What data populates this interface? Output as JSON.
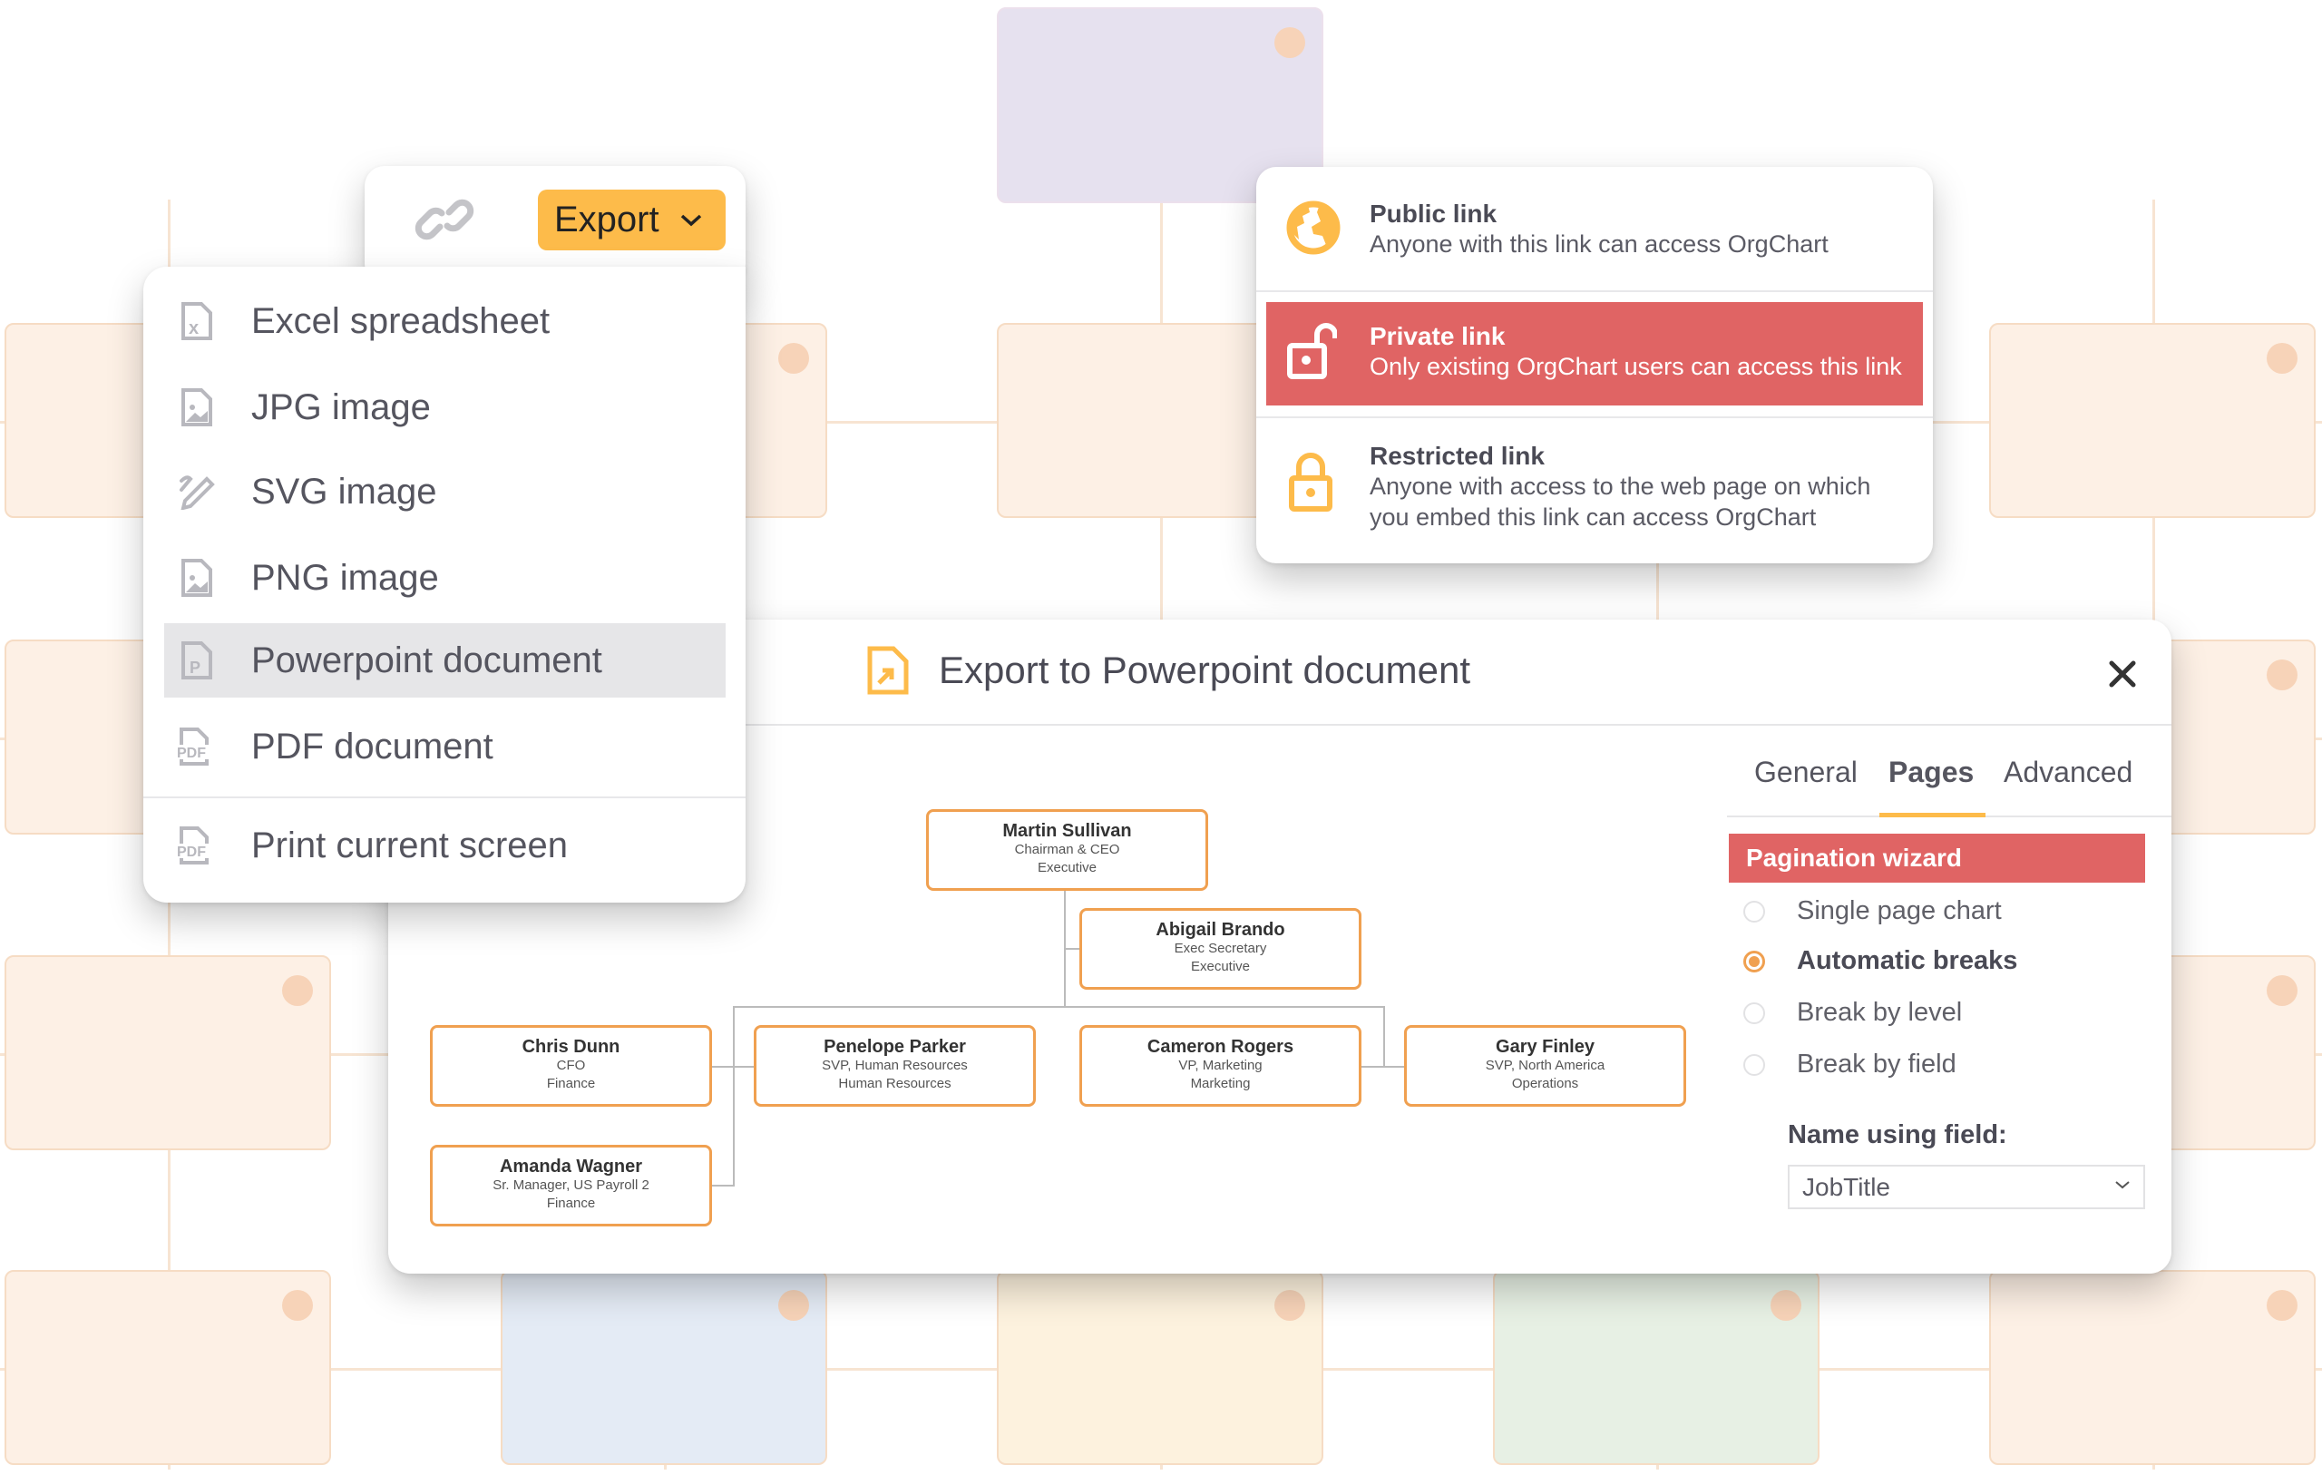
{
  "export_toolbar": {
    "export_label": "Export",
    "link_icon": "link-icon",
    "chevron_icon": "chevron-down-icon"
  },
  "export_menu": {
    "items": [
      {
        "label": "Excel spreadsheet",
        "icon": "excel-file-icon"
      },
      {
        "label": "JPG image",
        "icon": "image-file-icon"
      },
      {
        "label": "SVG image",
        "icon": "svg-pen-icon"
      },
      {
        "label": "PNG image",
        "icon": "image-file-icon"
      },
      {
        "label": "Powerpoint document",
        "icon": "powerpoint-file-icon",
        "selected": true
      },
      {
        "label": "PDF document",
        "icon": "pdf-file-icon"
      },
      {
        "label": "Print current screen",
        "icon": "pdf-file-icon"
      }
    ]
  },
  "link_options": [
    {
      "title": "Public link",
      "desc": "Anyone with this link can access OrgChart",
      "icon": "globe-icon"
    },
    {
      "title": "Private link",
      "desc": "Only existing OrgChart users can access this link",
      "icon": "unlock-icon",
      "selected": true
    },
    {
      "title": "Restricted link",
      "desc": "Anyone with access to the web page on which you embed this link can access OrgChart",
      "icon": "lock-icon"
    }
  ],
  "dialog": {
    "title": "Export to Powerpoint document",
    "tabs": [
      {
        "label": "General"
      },
      {
        "label": "Pages",
        "active": true
      },
      {
        "label": "Advanced"
      }
    ],
    "section_title": "Pagination wizard",
    "options": [
      {
        "label": "Single page chart",
        "checked": false
      },
      {
        "label": "Automatic breaks",
        "checked": true
      },
      {
        "label": "Break by level",
        "checked": false
      },
      {
        "label": "Break by field",
        "checked": false
      }
    ],
    "name_field_label": "Name using field:",
    "name_field_value": "JobTitle"
  },
  "org_chart": [
    {
      "name": "Martin Sullivan",
      "title": "Chairman & CEO",
      "dept": "Executive"
    },
    {
      "name": "Abigail Brando",
      "title": "Exec Secretary",
      "dept": "Executive"
    },
    {
      "name": "Chris Dunn",
      "title": "CFO",
      "dept": "Finance"
    },
    {
      "name": "Penelope Parker",
      "title": "SVP, Human Resources",
      "dept": "Human Resources"
    },
    {
      "name": "Cameron Rogers",
      "title": "VP, Marketing",
      "dept": "Marketing"
    },
    {
      "name": "Gary Finley",
      "title": "SVP, North America",
      "dept": "Operations"
    },
    {
      "name": "Amanda Wagner",
      "title": "Sr. Manager, US Payroll 2",
      "dept": "Finance"
    }
  ],
  "colors": {
    "accent": "#fdbb4a",
    "danger": "#e06464",
    "node_border": "#f0a050"
  }
}
